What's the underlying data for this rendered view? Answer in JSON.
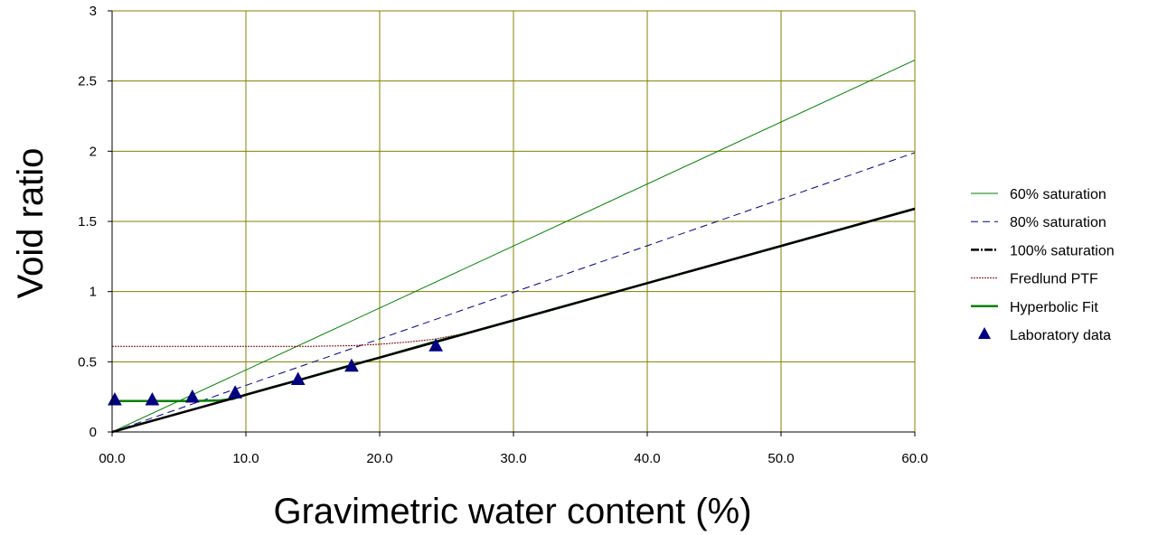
{
  "chart_data": {
    "type": "line",
    "xlabel": "Gravimetric water content (%)",
    "ylabel": "Void ratio",
    "xlim": [
      0,
      60
    ],
    "ylim": [
      0,
      3
    ],
    "x_ticks": [
      0,
      10,
      20,
      30,
      40,
      50,
      60
    ],
    "x_tick_labels": [
      "00.0",
      "10.0",
      "20.0",
      "30.0",
      "40.0",
      "50.0",
      "60.0"
    ],
    "y_ticks": [
      0,
      0.5,
      1,
      1.5,
      2,
      2.5,
      3
    ],
    "y_tick_labels": [
      "0",
      "0.5",
      "1",
      "1.5",
      "2",
      "2.5",
      "3"
    ],
    "grid": true,
    "legend_position": "right",
    "colors": {
      "grid": "#808000",
      "sat60": "#008000",
      "sat80": "#000080",
      "sat100": "#000000",
      "fredlund": "#800000",
      "hyperbolic": "#008000",
      "lab": "#000080"
    },
    "series": [
      {
        "name": "60% saturation",
        "style": "thin-solid",
        "x": [
          0,
          60
        ],
        "y": [
          0,
          2.65
        ]
      },
      {
        "name": "80% saturation",
        "style": "dashed",
        "x": [
          0,
          60
        ],
        "y": [
          0,
          1.99
        ]
      },
      {
        "name": "100% saturation",
        "style": "thick-dashdot",
        "x": [
          0,
          60
        ],
        "y": [
          0,
          1.59
        ]
      },
      {
        "name": "Fredlund PTF",
        "style": "dotted",
        "x": [
          0,
          5,
          10,
          15,
          18,
          20,
          22,
          24,
          26,
          28,
          30,
          40,
          60
        ],
        "y": [
          0.61,
          0.61,
          0.61,
          0.61,
          0.615,
          0.625,
          0.64,
          0.66,
          0.695,
          0.745,
          0.795,
          1.06,
          1.59
        ]
      },
      {
        "name": "Hyperbolic Fit",
        "style": "thick-solid",
        "x": [
          0,
          3,
          6,
          8,
          9,
          10,
          12,
          14,
          16,
          18,
          20,
          22,
          24,
          26,
          30,
          40,
          60
        ],
        "y": [
          0.22,
          0.22,
          0.22,
          0.225,
          0.235,
          0.265,
          0.32,
          0.37,
          0.425,
          0.48,
          0.53,
          0.585,
          0.64,
          0.69,
          0.795,
          1.06,
          1.59
        ]
      },
      {
        "name": "Laboratory data",
        "style": "markers",
        "x": [
          0.2,
          3.0,
          6.0,
          9.2,
          13.9,
          17.9,
          24.2
        ],
        "y": [
          0.225,
          0.225,
          0.245,
          0.275,
          0.37,
          0.465,
          0.61
        ]
      }
    ]
  }
}
